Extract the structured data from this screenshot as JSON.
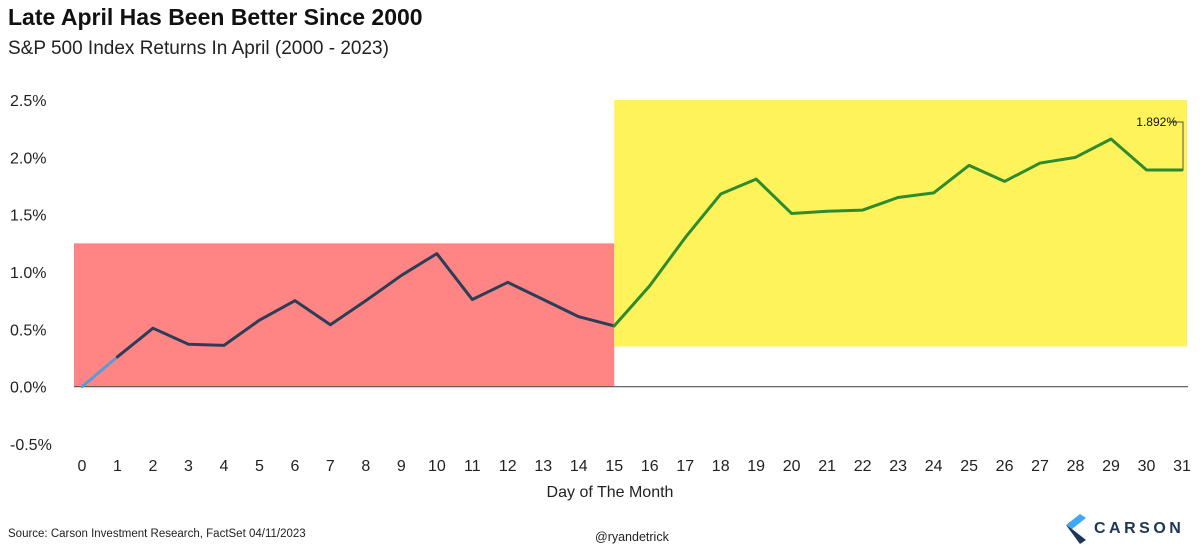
{
  "header": {
    "title": "Late April Has Been Better Since 2000",
    "subtitle": "S&P 500 Index Returns In April (2000 - 2023)"
  },
  "footer": {
    "source": "Source: Carson Investment Research, FactSet 04/11/2023",
    "handle": "@ryandetrick",
    "brand": "CARSON",
    "brand_icon": "carson-chevron-logo"
  },
  "chart_data": {
    "type": "line",
    "title": "Late April Has Been Better Since 2000",
    "subtitle": "S&P 500 Index Returns In April (2000 - 2023)",
    "xlabel": "Day of The Month",
    "ylabel": "",
    "x": [
      0,
      1,
      2,
      3,
      4,
      5,
      6,
      7,
      8,
      9,
      10,
      11,
      12,
      13,
      14,
      15,
      16,
      17,
      18,
      19,
      20,
      21,
      22,
      23,
      24,
      25,
      26,
      27,
      28,
      29,
      30,
      31
    ],
    "series": [
      {
        "values": [
          0.0,
          0.26,
          0.51,
          0.37,
          0.36,
          0.58,
          0.75,
          0.54,
          0.75,
          0.97,
          1.16,
          0.76,
          0.91,
          0.76,
          0.61,
          0.53,
          0.88,
          1.3,
          1.68,
          1.81,
          1.51,
          1.53,
          1.54,
          1.65,
          1.69,
          1.93,
          1.79,
          1.95,
          2.0,
          2.16,
          1.89,
          1.89
        ]
      }
    ],
    "ylim": [
      -0.5,
      2.5
    ],
    "xlim": [
      0,
      31
    ],
    "yticks": [
      -0.5,
      0.0,
      0.5,
      1.0,
      1.5,
      2.0,
      2.5
    ],
    "ytick_labels": [
      "-0.5%",
      "0.0%",
      "0.5%",
      "1.0%",
      "1.5%",
      "2.0%",
      "2.5%"
    ],
    "xtick_labels": [
      "0",
      "1",
      "2",
      "3",
      "4",
      "5",
      "6",
      "7",
      "8",
      "9",
      "10",
      "11",
      "12",
      "13",
      "14",
      "15",
      "16",
      "17",
      "18",
      "19",
      "20",
      "21",
      "22",
      "23",
      "24",
      "25",
      "26",
      "27",
      "28",
      "29",
      "30",
      "31"
    ],
    "grid": false,
    "legend": "none",
    "annotation": {
      "x": 31,
      "value": 1.892,
      "text": "1.892%"
    },
    "highlights": [
      {
        "from": 0,
        "to": 15,
        "ymin": 0.0,
        "ymax": 1.25,
        "color": "#ff8585"
      },
      {
        "from": 15,
        "to": 31,
        "ymin": 0.35,
        "ymax": 2.5,
        "color": "#fff35c"
      }
    ],
    "colors": {
      "early_line": "#2c3e57",
      "late_line": "#2e8b2e",
      "start_line": "#5b9bd5",
      "axis": "#555555"
    }
  }
}
